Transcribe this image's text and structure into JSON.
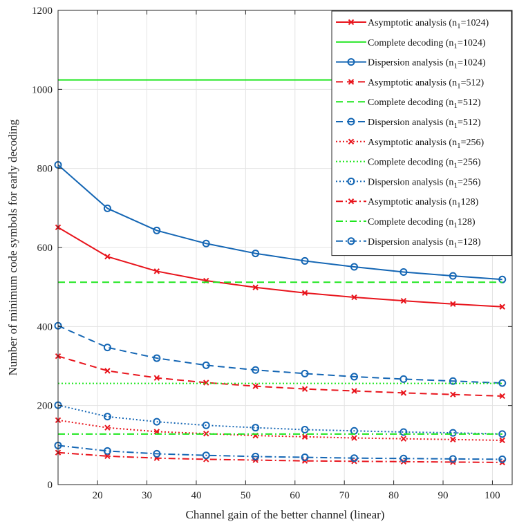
{
  "chart_data": {
    "type": "line",
    "xlabel": "Channel gain of the better channel (linear)",
    "ylabel": "Number of minimum code symbols for early decoding",
    "xlim": [
      12,
      104
    ],
    "ylim": [
      0,
      1200
    ],
    "xticks": [
      20,
      30,
      40,
      50,
      60,
      70,
      80,
      90,
      100
    ],
    "yticks": [
      0,
      200,
      400,
      600,
      800,
      1000,
      1200
    ],
    "grid": true,
    "legend_position": "top-right",
    "x": [
      12,
      22,
      32,
      42,
      52,
      62,
      72,
      82,
      92,
      102
    ],
    "series": [
      {
        "name": "Asymptotic analysis (n",
        "sub": "1",
        "suffix": "=1024)",
        "color": "#e8141c",
        "dash": "solid",
        "marker": "x",
        "values": [
          651,
          577,
          540,
          516,
          499,
          485,
          474,
          465,
          457,
          450
        ]
      },
      {
        "name": "Complete decoding (n",
        "sub": "1",
        "suffix": "=1024)",
        "color": "#1ee61e",
        "dash": "solid",
        "marker": "none",
        "values": [
          1024,
          1024,
          1024,
          1024,
          1024,
          1024,
          1024,
          1024,
          1024,
          1024
        ]
      },
      {
        "name": "Dispersion analysis (n",
        "sub": "1",
        "suffix": "=1024)",
        "color": "#1466b4",
        "dash": "solid",
        "marker": "o",
        "values": [
          809,
          699,
          643,
          610,
          585,
          566,
          551,
          538,
          528,
          519
        ]
      },
      {
        "name": "Asymptotic analysis (n",
        "sub": "1",
        "suffix": "=512)",
        "color": "#e8141c",
        "dash": "dashed",
        "marker": "x",
        "values": [
          325,
          288,
          270,
          258,
          249,
          242,
          237,
          232,
          228,
          224
        ]
      },
      {
        "name": "Complete decoding (n",
        "sub": "1",
        "suffix": "=512)",
        "color": "#1ee61e",
        "dash": "dashed",
        "marker": "none",
        "values": [
          512,
          512,
          512,
          512,
          512,
          512,
          512,
          512,
          512,
          512
        ]
      },
      {
        "name": "Dispersion analysis (n",
        "sub": "1",
        "suffix": "=512)",
        "color": "#1466b4",
        "dash": "dashed",
        "marker": "o",
        "values": [
          402,
          347,
          320,
          302,
          290,
          281,
          273,
          267,
          262,
          257
        ]
      },
      {
        "name": "Asymptotic analysis (n",
        "sub": "1",
        "suffix": "=256)",
        "color": "#e8141c",
        "dash": "dotted",
        "marker": "x",
        "values": [
          163,
          144,
          134,
          129,
          124,
          121,
          118,
          116,
          114,
          112
        ]
      },
      {
        "name": "Complete decoding (n",
        "sub": "1",
        "suffix": "=256)",
        "color": "#1ee61e",
        "dash": "dotted",
        "marker": "none",
        "values": [
          256,
          256,
          256,
          256,
          256,
          256,
          256,
          256,
          256,
          256
        ]
      },
      {
        "name": "Dispersion analysis (n",
        "sub": "1",
        "suffix": "=256)",
        "color": "#1466b4",
        "dash": "dotted",
        "marker": "o",
        "values": [
          201,
          172,
          159,
          150,
          144,
          139,
          136,
          133,
          131,
          128
        ]
      },
      {
        "name": "Asymptotic analysis (n",
        "sub": "1",
        "suffix": "128)",
        "color": "#e8141c",
        "dash": "dashdot",
        "marker": "x",
        "values": [
          81,
          72,
          67,
          64,
          62,
          60,
          59,
          58,
          57,
          56
        ]
      },
      {
        "name": "Complete decoding (n",
        "sub": "1",
        "suffix": "128)",
        "color": "#1ee61e",
        "dash": "dashdot",
        "marker": "none",
        "values": [
          128,
          128,
          128,
          128,
          128,
          128,
          128,
          128,
          128,
          128
        ]
      },
      {
        "name": "Dispersion analysis (n",
        "sub": "1",
        "suffix": "=128)",
        "color": "#1466b4",
        "dash": "dashdot",
        "marker": "o",
        "values": [
          99,
          85,
          78,
          74,
          71,
          69,
          67,
          66,
          65,
          64
        ]
      }
    ]
  }
}
